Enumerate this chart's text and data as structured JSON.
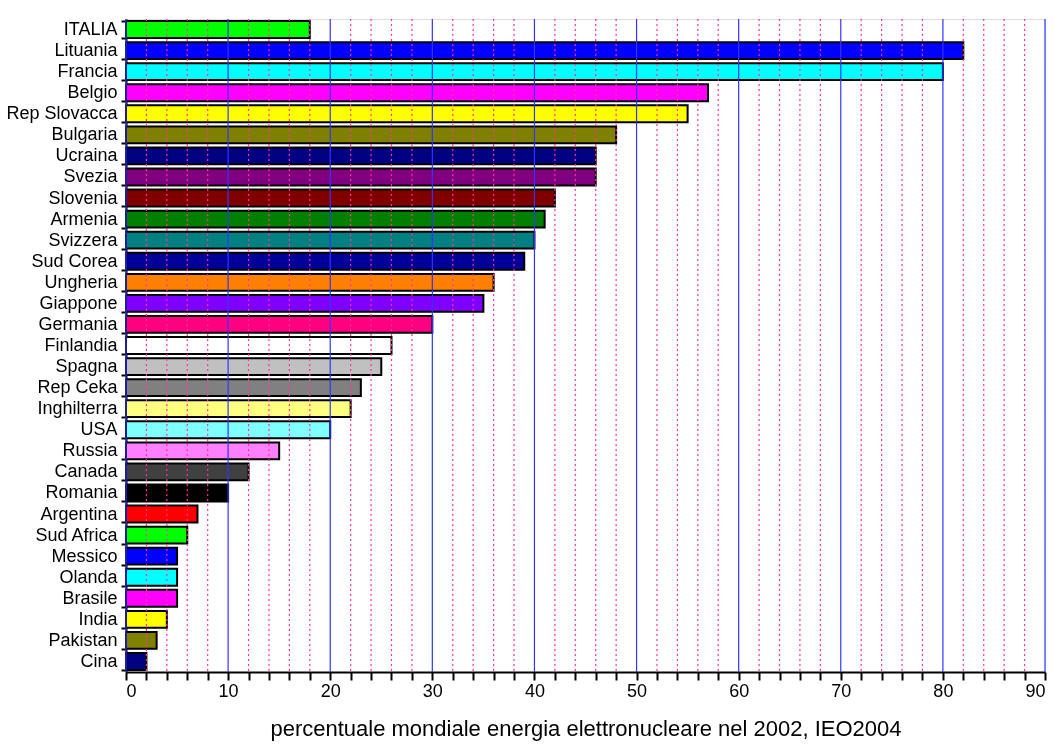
{
  "chart_data": {
    "type": "bar",
    "orientation": "horizontal",
    "xlabel": "percentuale mondiale energia elettronucleare nel 2002, IEO2004",
    "categories": [
      "ITALIA",
      "Lituania",
      "Francia",
      "Belgio",
      "Rep Slovacca",
      "Bulgaria",
      "Ucraina",
      "Svezia",
      "Slovenia",
      "Armenia",
      "Svizzera",
      "Sud Corea",
      "Ungheria",
      "Giappone",
      "Germania",
      "Finlandia",
      "Spagna",
      "Rep Ceka",
      "Inghilterra",
      "USA",
      "Russia",
      "Canada",
      "Romania",
      "Argentina",
      "Sud Africa",
      "Messico",
      "Olanda",
      "Brasile",
      "India",
      "Pakistan",
      "Cina"
    ],
    "values": [
      18,
      82,
      80,
      57,
      55,
      48,
      46,
      46,
      42,
      41,
      40,
      39,
      36,
      35,
      30,
      26,
      25,
      23,
      22,
      20,
      15,
      12,
      10,
      7,
      6,
      5,
      5,
      5,
      4,
      3,
      2
    ],
    "colors": [
      "#00ff00",
      "#0000ff",
      "#00ffff",
      "#ff00ff",
      "#ffff00",
      "#808000",
      "#000080",
      "#800080",
      "#800000",
      "#008000",
      "#008080",
      "#000099",
      "#ff8000",
      "#8000ff",
      "#ff0080",
      "#ffffff",
      "#c0c0c0",
      "#808080",
      "#ffff80",
      "#80ffff",
      "#ff80ff",
      "#404040",
      "#000000",
      "#ff0000",
      "#00ff00",
      "#0000ff",
      "#00ffff",
      "#ff00ff",
      "#ffff00",
      "#808000",
      "#000080"
    ],
    "xlim": [
      0,
      90
    ],
    "xticks": [
      0,
      {
        "value": 2,
        "label": null
      },
      {
        "value": 4,
        "label": null
      },
      {
        "value": 6,
        "label": null
      },
      {
        "value": 8,
        "label": null
      },
      10,
      {
        "value": 12,
        "label": null
      },
      {
        "value": 14,
        "label": null
      },
      {
        "value": 16,
        "label": null
      },
      {
        "value": 18,
        "label": null
      },
      20,
      {
        "value": 22,
        "label": null
      },
      {
        "value": 24,
        "label": null
      },
      {
        "value": 26,
        "label": null
      },
      {
        "value": 28,
        "label": null
      },
      30,
      {
        "value": 32,
        "label": null
      },
      {
        "value": 34,
        "label": null
      },
      {
        "value": 36,
        "label": null
      },
      {
        "value": 38,
        "label": null
      },
      40,
      {
        "value": 42,
        "label": null
      },
      {
        "value": 44,
        "label": null
      },
      {
        "value": 46,
        "label": null
      },
      {
        "value": 48,
        "label": null
      },
      50,
      {
        "value": 52,
        "label": null
      },
      {
        "value": 54,
        "label": null
      },
      {
        "value": 56,
        "label": null
      },
      {
        "value": 58,
        "label": null
      },
      60,
      {
        "value": 62,
        "label": null
      },
      {
        "value": 64,
        "label": null
      },
      {
        "value": 66,
        "label": null
      },
      {
        "value": 68,
        "label": null
      },
      70,
      {
        "value": 72,
        "label": null
      },
      {
        "value": 74,
        "label": null
      },
      {
        "value": 76,
        "label": null
      },
      {
        "value": 78,
        "label": null
      },
      80,
      {
        "value": 82,
        "label": null
      },
      {
        "value": 84,
        "label": null
      },
      {
        "value": 86,
        "label": null
      },
      {
        "value": 88,
        "label": null
      },
      90
    ],
    "grid": "x"
  }
}
